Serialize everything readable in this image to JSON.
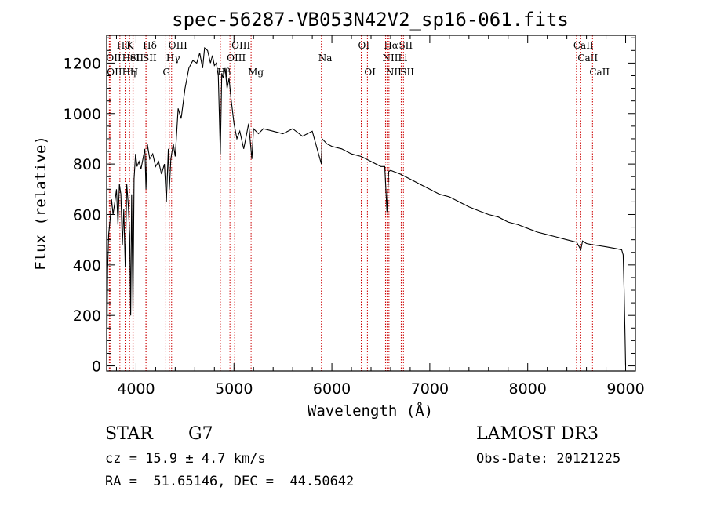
{
  "chart_data": {
    "type": "line",
    "title": "spec-56287-VB053N42V2_sp16-061.fits",
    "xlabel": "Wavelength (Å)",
    "ylabel": "Flux (relative)",
    "xlim": [
      3700,
      9100
    ],
    "ylim": [
      -20,
      1310
    ],
    "xticks": [
      4000,
      5000,
      6000,
      7000,
      8000,
      9000
    ],
    "yticks": [
      0,
      200,
      400,
      600,
      800,
      1000,
      1200
    ],
    "spectrum": {
      "x": [
        3700,
        3710,
        3720,
        3735,
        3750,
        3765,
        3780,
        3800,
        3815,
        3830,
        3845,
        3860,
        3875,
        3890,
        3905,
        3920,
        3935,
        3945,
        3955,
        3968,
        3980,
        3995,
        4010,
        4030,
        4050,
        4070,
        4090,
        4101,
        4115,
        4140,
        4170,
        4200,
        4230,
        4260,
        4290,
        4310,
        4330,
        4340,
        4355,
        4380,
        4400,
        4430,
        4460,
        4500,
        4540,
        4580,
        4620,
        4650,
        4680,
        4700,
        4730,
        4760,
        4780,
        4800,
        4820,
        4840,
        4861,
        4875,
        4890,
        4910,
        4930,
        4950,
        4970,
        5000,
        5030,
        5060,
        5100,
        5150,
        5183,
        5200,
        5250,
        5300,
        5400,
        5500,
        5600,
        5700,
        5800,
        5893,
        5900,
        5950,
        6000,
        6100,
        6200,
        6300,
        6400,
        6500,
        6540,
        6563,
        6580,
        6600,
        6700,
        6800,
        6900,
        7000,
        7100,
        7200,
        7300,
        7400,
        7500,
        7600,
        7700,
        7800,
        7900,
        8000,
        8100,
        8200,
        8300,
        8400,
        8500,
        8542,
        8560,
        8600,
        8662,
        8700,
        8800,
        8900,
        8960,
        8975,
        8985,
        8995,
        9000
      ],
      "y": [
        0,
        380,
        520,
        580,
        660,
        600,
        640,
        700,
        560,
        720,
        680,
        480,
        620,
        390,
        720,
        640,
        520,
        200,
        680,
        220,
        740,
        840,
        790,
        810,
        780,
        820,
        860,
        700,
        880,
        820,
        840,
        790,
        810,
        760,
        800,
        650,
        860,
        700,
        820,
        880,
        830,
        1020,
        980,
        1100,
        1180,
        1210,
        1200,
        1240,
        1180,
        1260,
        1250,
        1200,
        1230,
        1190,
        1200,
        1150,
        840,
        1160,
        1140,
        1180,
        1100,
        1140,
        1060,
        960,
        900,
        930,
        860,
        960,
        820,
        940,
        920,
        940,
        930,
        920,
        940,
        910,
        930,
        800,
        900,
        880,
        870,
        860,
        840,
        830,
        810,
        790,
        790,
        610,
        770,
        775,
        760,
        740,
        720,
        700,
        680,
        670,
        650,
        630,
        615,
        600,
        590,
        570,
        560,
        545,
        530,
        520,
        510,
        500,
        490,
        460,
        495,
        485,
        480,
        478,
        472,
        465,
        460,
        440,
        300,
        100,
        0
      ]
    },
    "line_marks": [
      {
        "wl": 3835,
        "row": 1,
        "label": "Hθ"
      },
      {
        "wl": 3727,
        "row": 2,
        "label": "OII"
      },
      {
        "wl": 3734,
        "row": 3,
        "label": "OII"
      },
      {
        "wl": 3889,
        "row": 2,
        "label": "HeI"
      },
      {
        "wl": 3889,
        "row": 3,
        "label": "Hη"
      },
      {
        "wl": 3934,
        "row": 1,
        "label": "K"
      },
      {
        "wl": 3968,
        "row": 2,
        "label": "SII"
      },
      {
        "wl": 3970,
        "row": 3,
        "label": "H"
      },
      {
        "wl": 4102,
        "row": 1,
        "label": "Hδ"
      },
      {
        "wl": 4101,
        "row": 2,
        "label": "SII"
      },
      {
        "wl": 4340,
        "row": 2,
        "label": "Hγ"
      },
      {
        "wl": 4304,
        "row": 3,
        "label": "G"
      },
      {
        "wl": 4363,
        "row": 1,
        "label": "OIII"
      },
      {
        "wl": 4861,
        "row": 3,
        "label": "Hβ"
      },
      {
        "wl": 4959,
        "row": 2,
        "label": "OIII"
      },
      {
        "wl": 5007,
        "row": 1,
        "label": "OIII"
      },
      {
        "wl": 5175,
        "row": 3,
        "label": "Mg"
      },
      {
        "wl": 5893,
        "row": 2,
        "label": "Na"
      },
      {
        "wl": 6300,
        "row": 1,
        "label": "OI"
      },
      {
        "wl": 6363,
        "row": 3,
        "label": "OI"
      },
      {
        "wl": 6563,
        "row": 1,
        "label": "Hα"
      },
      {
        "wl": 6548,
        "row": 2,
        "label": "NII"
      },
      {
        "wl": 6583,
        "row": 3,
        "label": "NII"
      },
      {
        "wl": 6716,
        "row": 1,
        "label": "SII"
      },
      {
        "wl": 6708,
        "row": 2,
        "label": "Li"
      },
      {
        "wl": 6731,
        "row": 3,
        "label": "SII"
      },
      {
        "wl": 8498,
        "row": 1,
        "label": "CaII"
      },
      {
        "wl": 8542,
        "row": 2,
        "label": "CaII"
      },
      {
        "wl": 8662,
        "row": 3,
        "label": "CaII"
      }
    ],
    "line_color": "#cc0000"
  },
  "info": {
    "class": "STAR",
    "subclass": "G7",
    "cz": "cz = 15.9 ± 4.7 km/s",
    "coords": "RA =  51.65146, DEC =  44.50642",
    "survey": "LAMOST DR3",
    "obs_date": "Obs-Date: 20121225"
  }
}
